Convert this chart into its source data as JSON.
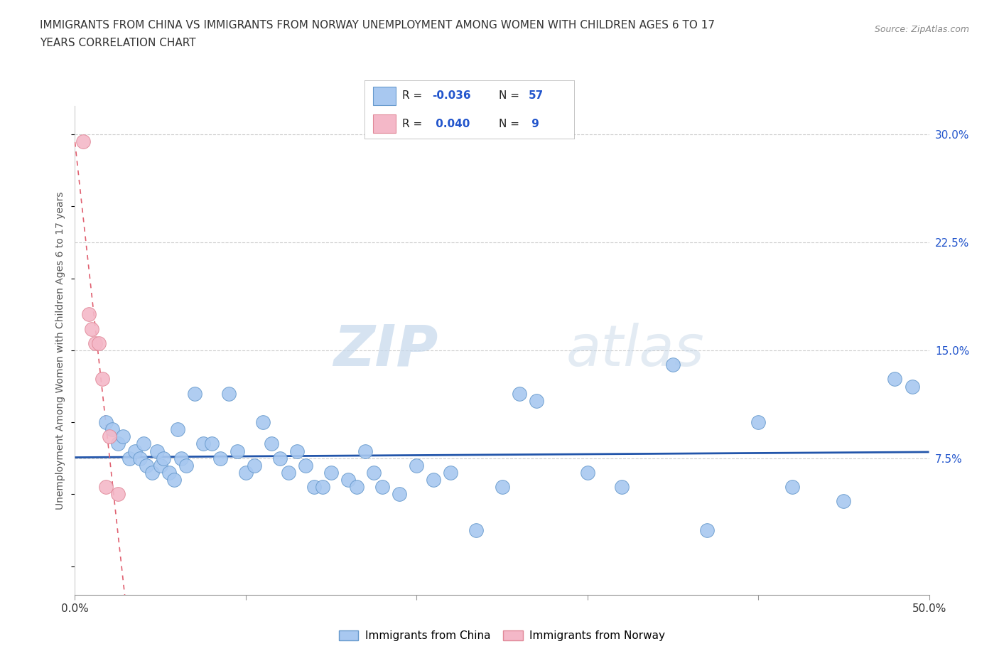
{
  "title_line1": "IMMIGRANTS FROM CHINA VS IMMIGRANTS FROM NORWAY UNEMPLOYMENT AMONG WOMEN WITH CHILDREN AGES 6 TO 17",
  "title_line2": "YEARS CORRELATION CHART",
  "source_text": "Source: ZipAtlas.com",
  "ylabel": "Unemployment Among Women with Children Ages 6 to 17 years",
  "xlim": [
    0.0,
    0.5
  ],
  "ylim": [
    -0.02,
    0.32
  ],
  "ytick_right_vals": [
    0.075,
    0.15,
    0.225,
    0.3
  ],
  "ytick_right_labels": [
    "7.5%",
    "15.0%",
    "22.5%",
    "30.0%"
  ],
  "watermark_zip": "ZIP",
  "watermark_atlas": "atlas",
  "china_color": "#a8c8f0",
  "china_edge": "#6699cc",
  "norway_color": "#f4b8c8",
  "norway_edge": "#e08898",
  "trend_china_color": "#2255aa",
  "trend_norway_color": "#e06070",
  "legend_R_color": "#2255cc",
  "china_x": [
    0.018,
    0.022,
    0.025,
    0.028,
    0.032,
    0.035,
    0.038,
    0.04,
    0.042,
    0.045,
    0.048,
    0.05,
    0.052,
    0.055,
    0.058,
    0.06,
    0.062,
    0.065,
    0.07,
    0.075,
    0.08,
    0.085,
    0.09,
    0.095,
    0.1,
    0.105,
    0.11,
    0.115,
    0.12,
    0.125,
    0.13,
    0.135,
    0.14,
    0.145,
    0.15,
    0.16,
    0.165,
    0.17,
    0.175,
    0.18,
    0.19,
    0.2,
    0.21,
    0.22,
    0.235,
    0.25,
    0.26,
    0.27,
    0.3,
    0.32,
    0.35,
    0.37,
    0.4,
    0.42,
    0.45,
    0.48,
    0.49
  ],
  "china_y": [
    0.1,
    0.095,
    0.085,
    0.09,
    0.075,
    0.08,
    0.075,
    0.085,
    0.07,
    0.065,
    0.08,
    0.07,
    0.075,
    0.065,
    0.06,
    0.095,
    0.075,
    0.07,
    0.12,
    0.085,
    0.085,
    0.075,
    0.12,
    0.08,
    0.065,
    0.07,
    0.1,
    0.085,
    0.075,
    0.065,
    0.08,
    0.07,
    0.055,
    0.055,
    0.065,
    0.06,
    0.055,
    0.08,
    0.065,
    0.055,
    0.05,
    0.07,
    0.06,
    0.065,
    0.025,
    0.055,
    0.12,
    0.115,
    0.065,
    0.055,
    0.14,
    0.025,
    0.1,
    0.055,
    0.045,
    0.13,
    0.125
  ],
  "norway_x": [
    0.005,
    0.008,
    0.01,
    0.012,
    0.014,
    0.016,
    0.018,
    0.02,
    0.025
  ],
  "norway_y": [
    0.295,
    0.175,
    0.165,
    0.155,
    0.155,
    0.13,
    0.055,
    0.09,
    0.05
  ]
}
